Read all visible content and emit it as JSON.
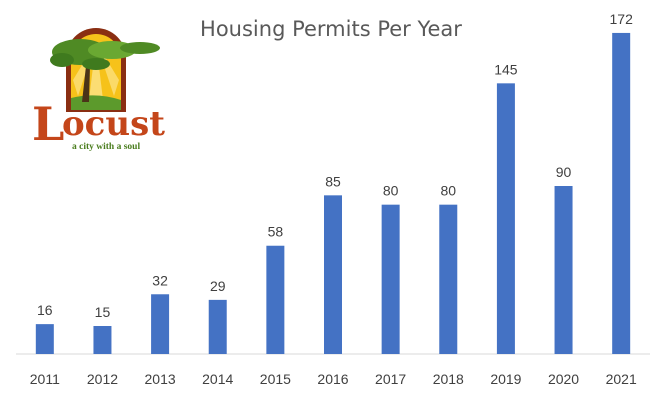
{
  "logo": {
    "name": "Locust",
    "tagline": "a city with a soul",
    "colors": {
      "word": "#c4461a",
      "tree": "#4f8a24",
      "sun": "#f6c21a",
      "frame": "#8a2e12"
    }
  },
  "chart_data": {
    "type": "bar",
    "title": "Housing Permits Per Year",
    "xlabel": "",
    "ylabel": "",
    "categories": [
      "2011",
      "2012",
      "2013",
      "2014",
      "2015",
      "2016",
      "2017",
      "2018",
      "2019",
      "2020",
      "2021"
    ],
    "values": [
      16,
      15,
      32,
      29,
      58,
      85,
      80,
      80,
      145,
      90,
      172
    ],
    "ylim": [
      0,
      180
    ],
    "grid": false,
    "legend": "none",
    "data_labels": true,
    "bar_color": "#4472c4",
    "axis_color": "#d9d9d9"
  }
}
